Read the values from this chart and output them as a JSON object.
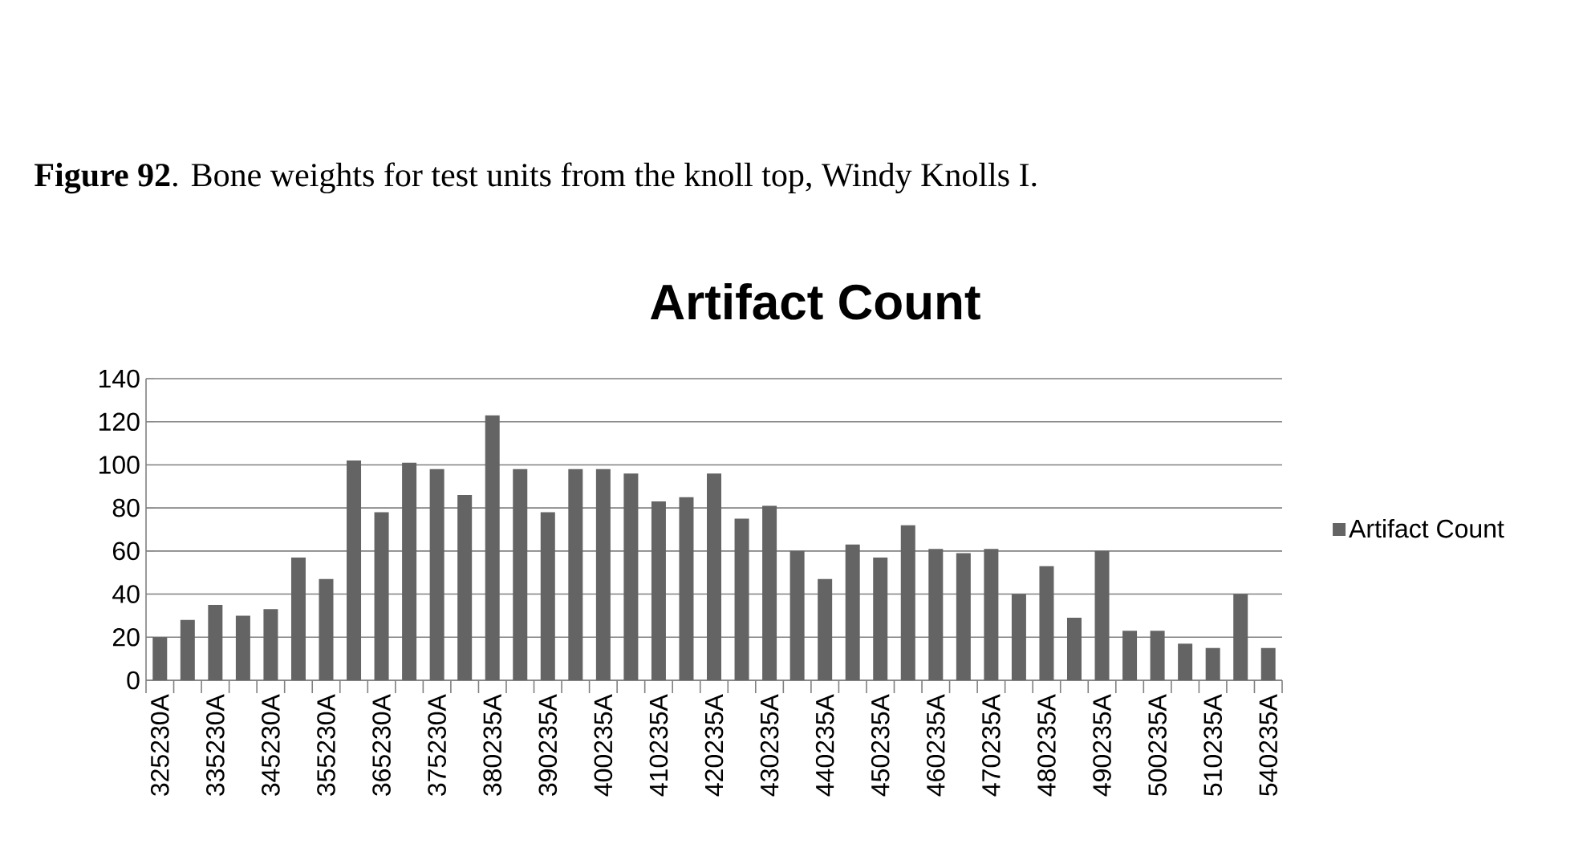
{
  "chart_data": {
    "type": "bar",
    "title": "Artifact Count",
    "categories": [
      "325230A",
      null,
      "335230A",
      null,
      "345230A",
      null,
      "355230A",
      null,
      "365230A",
      null,
      "375230A",
      null,
      "380235A",
      null,
      "390235A",
      null,
      "400235A",
      null,
      "410235A",
      null,
      "420235A",
      null,
      "430235A",
      null,
      "440235A",
      null,
      "450235A",
      null,
      "460235A",
      null,
      "470235A",
      null,
      "480235A",
      null,
      "490235A",
      null,
      "500235A",
      null,
      "510235A",
      null,
      "540235A"
    ],
    "series": [
      {
        "name": "Artifact Count",
        "color": "#646464",
        "values": [
          20,
          28,
          35,
          30,
          33,
          57,
          47,
          102,
          78,
          101,
          98,
          86,
          123,
          98,
          78,
          98,
          98,
          96,
          83,
          85,
          96,
          75,
          81,
          60,
          47,
          63,
          57,
          72,
          61,
          59,
          61,
          40,
          53,
          29,
          60,
          23,
          23,
          17,
          15,
          40,
          15
        ]
      }
    ],
    "ylim": [
      0,
      140
    ],
    "yticks": [
      0,
      20,
      40,
      60,
      80,
      100,
      120,
      140
    ],
    "grid": "y",
    "legend": "right",
    "annotations": [
      "**Figure 92**. Bone weights for test units from the knoll top, Windy Knolls I."
    ]
  }
}
